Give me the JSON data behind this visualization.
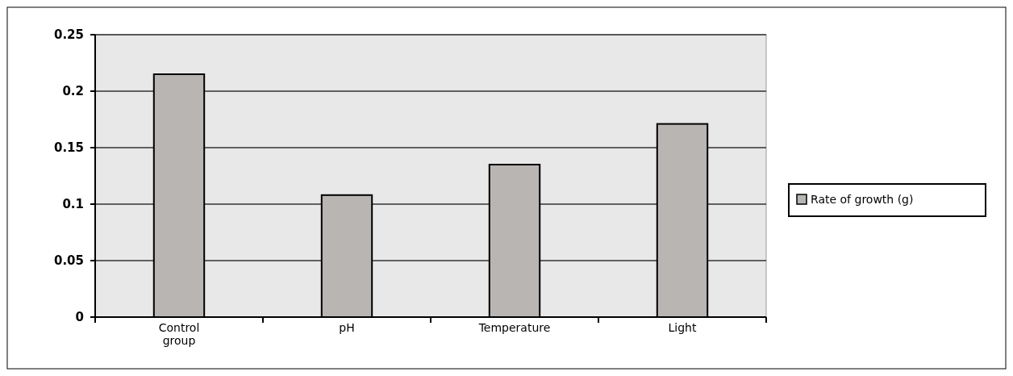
{
  "chart_data": {
    "type": "bar",
    "categories": [
      "Control\ngroup",
      "pH",
      "Temperature",
      "Light"
    ],
    "series": [
      {
        "name": "Rate of growth (g)",
        "color": "#b8b5b3",
        "values": [
          0.215,
          0.108,
          0.135,
          0.171
        ]
      }
    ],
    "ylim": [
      0,
      0.25
    ],
    "yticks": [
      0,
      0.05,
      0.1,
      0.15,
      0.2,
      0.25
    ],
    "grid": "y",
    "legend": "right"
  }
}
